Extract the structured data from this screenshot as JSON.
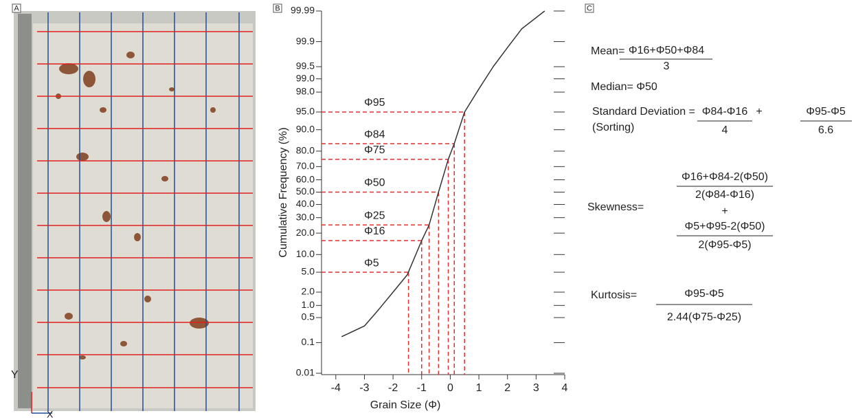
{
  "panel_a": {
    "panel_label": "A",
    "y_axis_label": "Y",
    "x_axis_label": "X"
  },
  "chart_data": {
    "type": "line",
    "panel_label": "B",
    "x_label": "Grain Size (Φ)",
    "y_label": "Cumulative Frequency (%)",
    "x": [
      -3.8,
      -3,
      -2.5,
      -2,
      -1.5,
      -1,
      -0.74,
      -0.41,
      -0.07,
      0.14,
      0.5,
      1,
      1.5,
      2,
      2.5,
      3.3
    ],
    "values": [
      0.15,
      0.3,
      0.8,
      2,
      4.5,
      16,
      25,
      50,
      75,
      84,
      95,
      98.3,
      99.5,
      99.85,
      99.96,
      99.99
    ],
    "color": "#333333",
    "reference_color": "#e03030",
    "xlim": [
      -4.5,
      4
    ],
    "xticks": [
      -4,
      -3,
      -2,
      -1,
      0,
      1,
      2,
      3,
      4
    ],
    "ylim": [
      0.01,
      99.99
    ],
    "y_scale": "probability",
    "yticks": [
      99.99,
      99.9,
      99.5,
      {
        "value": 99,
        "label": "99.0"
      },
      {
        "value": 98,
        "label": "98.0"
      },
      {
        "value": 95,
        "label": "95.0"
      },
      {
        "value": 90,
        "label": "90.0"
      },
      {
        "value": 80,
        "label": "80.0"
      },
      {
        "value": 70,
        "label": "70.0"
      },
      {
        "value": 60,
        "label": "60.0"
      },
      {
        "value": 50,
        "label": "50.0"
      },
      {
        "value": 40,
        "label": "40.0"
      },
      {
        "value": 30,
        "label": "30.0"
      },
      {
        "value": 20,
        "label": "20.0"
      },
      {
        "value": 10,
        "label": "10.0"
      },
      {
        "value": 5,
        "label": "5.0"
      },
      {
        "value": 2,
        "label": "2.0"
      },
      {
        "value": 1,
        "label": "1.0"
      },
      0.5,
      0.1,
      0.01
    ],
    "reference_lines": [
      {
        "label": "Φ95",
        "y": 95,
        "x": 0.5
      },
      {
        "label": "Φ84",
        "y": 84,
        "x": 0.14
      },
      {
        "label": "Φ75",
        "y": 75,
        "x": -0.07
      },
      {
        "label": "Φ50",
        "y": 50,
        "x": -0.41
      },
      {
        "label": "Φ25",
        "y": 25,
        "x": -0.74
      },
      {
        "label": "Φ16",
        "y": 16,
        "x": -1.0
      },
      {
        "label": "Φ5",
        "y": 5,
        "x": -1.46
      }
    ]
  },
  "panel_c": {
    "panel_label": "C",
    "mean": {
      "label": "Mean=",
      "numerator": "Φ16+Φ50+Φ84",
      "denominator": "3"
    },
    "median": "Median= Φ50",
    "sorting": {
      "label": "Standard Deviation =",
      "sublabel": "(Sorting)",
      "numerator_1": "Φ84-Φ16",
      "denominator_1": "4",
      "plus": "+",
      "numerator_2": "Φ95-Φ5",
      "denominator_2": "6.6"
    },
    "skewness": {
      "label": "Skewness=",
      "numerator_1": "Φ16+Φ84-2(Φ50)",
      "denominator_1": "2(Φ84-Φ16)",
      "plus": "+",
      "numerator_2": "Φ5+Φ95-2(Φ50)",
      "denominator_2": "2(Φ95-Φ5)"
    },
    "kurtosis": {
      "label": "Kurtosis=",
      "numerator": "Φ95-Φ5",
      "denominator": "2.44(Φ75-Φ25)"
    }
  }
}
